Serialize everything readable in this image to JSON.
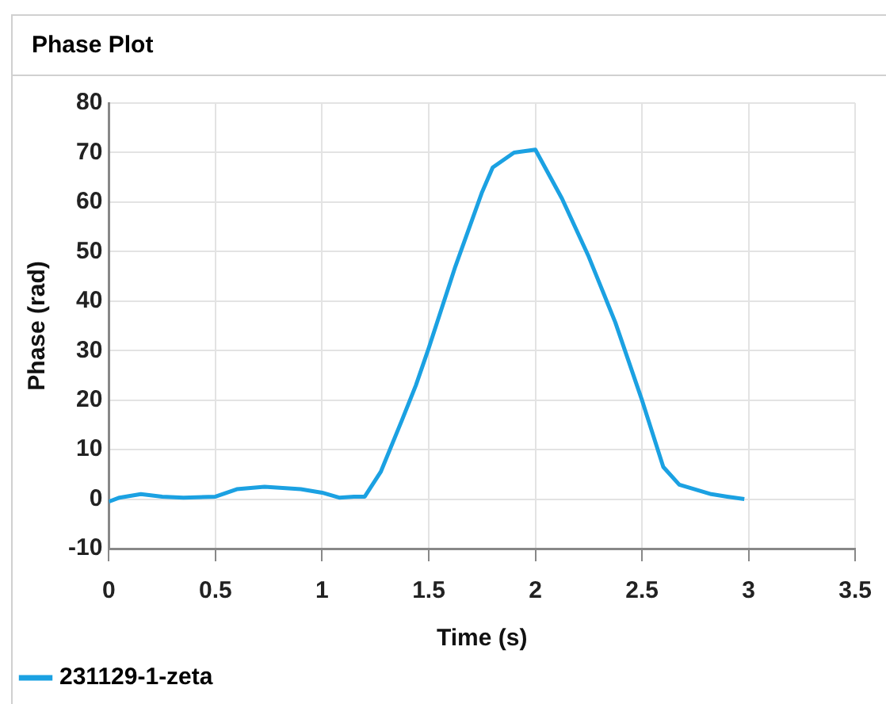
{
  "chart_data": {
    "type": "line",
    "title": "Phase Plot",
    "xlabel": "Time (s)",
    "ylabel": "Phase (rad)",
    "x": [
      0,
      0.05,
      0.15,
      0.25,
      0.35,
      0.5,
      0.6,
      0.73,
      0.9,
      1.0,
      1.08,
      1.15,
      1.2,
      1.275,
      1.375,
      1.44,
      1.5,
      1.625,
      1.75,
      1.8,
      1.9,
      2.0,
      2.125,
      2.25,
      2.375,
      2.5,
      2.6,
      2.675,
      2.825,
      2.9,
      2.98
    ],
    "series": [
      {
        "name": "231129-1-zeta",
        "color": "#1ba1e2",
        "values": [
          -0.5,
          0.3,
          1,
          0.5,
          0.3,
          0.5,
          2,
          2.5,
          2,
          1.3,
          0.3,
          0.5,
          0.5,
          5.5,
          16,
          23,
          30.5,
          47,
          62,
          67,
          70,
          70.6,
          60.7,
          49,
          35.7,
          20,
          6.5,
          2.9,
          1,
          0.5,
          0
        ]
      }
    ],
    "xlim": [
      0,
      3.5
    ],
    "xticks": [
      0,
      0.5,
      1,
      1.5,
      2,
      2.5,
      3,
      3.5
    ],
    "ylim": [
      -10,
      80
    ],
    "yticks": [
      -10,
      0,
      10,
      20,
      30,
      40,
      50,
      60,
      70,
      80
    ],
    "grid": true,
    "legend": "bottom left",
    "marker": "none",
    "line_style": "solid"
  }
}
